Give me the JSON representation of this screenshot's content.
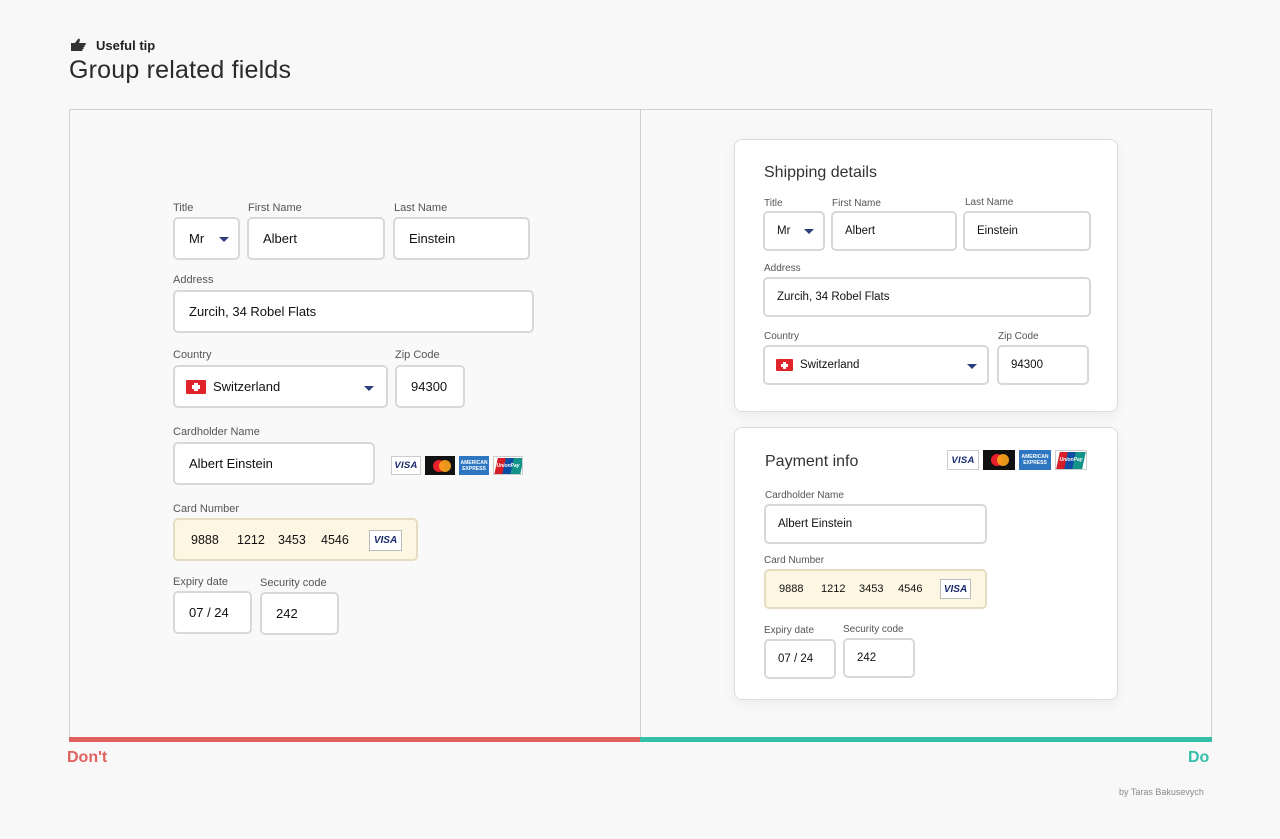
{
  "header": {
    "tip_icon": "pointing-hand-icon",
    "tip_label": "Useful tip",
    "title": "Group related fields"
  },
  "dont": {
    "verdict": "Don't",
    "title_label": "Title",
    "title_value": "Mr",
    "first_name_label": "First Name",
    "first_name_value": "Albert",
    "last_name_label": "Last Name",
    "last_name_value": "Einstein",
    "address_label": "Address",
    "address_value": "Zurcih, 34 Robel Flats",
    "country_label": "Country",
    "country_value": "Switzerland",
    "zip_label": "Zip Code",
    "zip_value": "94300",
    "cardholder_label": "Cardholder Name",
    "cardholder_value": "Albert Einstein",
    "card_label": "Card Number",
    "card_segments": [
      "9888",
      "1212",
      "3453",
      "4546"
    ],
    "expiry_label": "Expiry date",
    "expiry_value": "07 / 24",
    "security_label": "Security code",
    "security_value": "242"
  },
  "do": {
    "verdict": "Do",
    "shipping_title": "Shipping details",
    "title_label": "Title",
    "title_value": "Mr",
    "first_name_label": "First Name",
    "first_name_value": "Albert",
    "last_name_label": "Last Name",
    "last_name_value": "Einstein",
    "address_label": "Address",
    "address_value": "Zurcih, 34 Robel Flats",
    "country_label": "Country",
    "country_value": "Switzerland",
    "zip_label": "Zip Code",
    "zip_value": "94300",
    "payment_title": "Payment info",
    "cardholder_label": "Cardholder Name",
    "cardholder_value": "Albert Einstein",
    "card_label": "Card Number",
    "card_segments": [
      "9888",
      "1212",
      "3453",
      "4546"
    ],
    "expiry_label": "Expiry date",
    "expiry_value": "07 / 24",
    "security_label": "Security code",
    "security_value": "242"
  },
  "logos": {
    "visa": "VISA",
    "amex": "AMERICAN EXPRESS",
    "unionpay": "UnionPay"
  },
  "credit": "by Taras Bakusevych",
  "colors": {
    "dont": "#e0625e",
    "do": "#34bfa9",
    "card_field_bg": "#fdf6e3",
    "caret": "#2b3d7a"
  }
}
